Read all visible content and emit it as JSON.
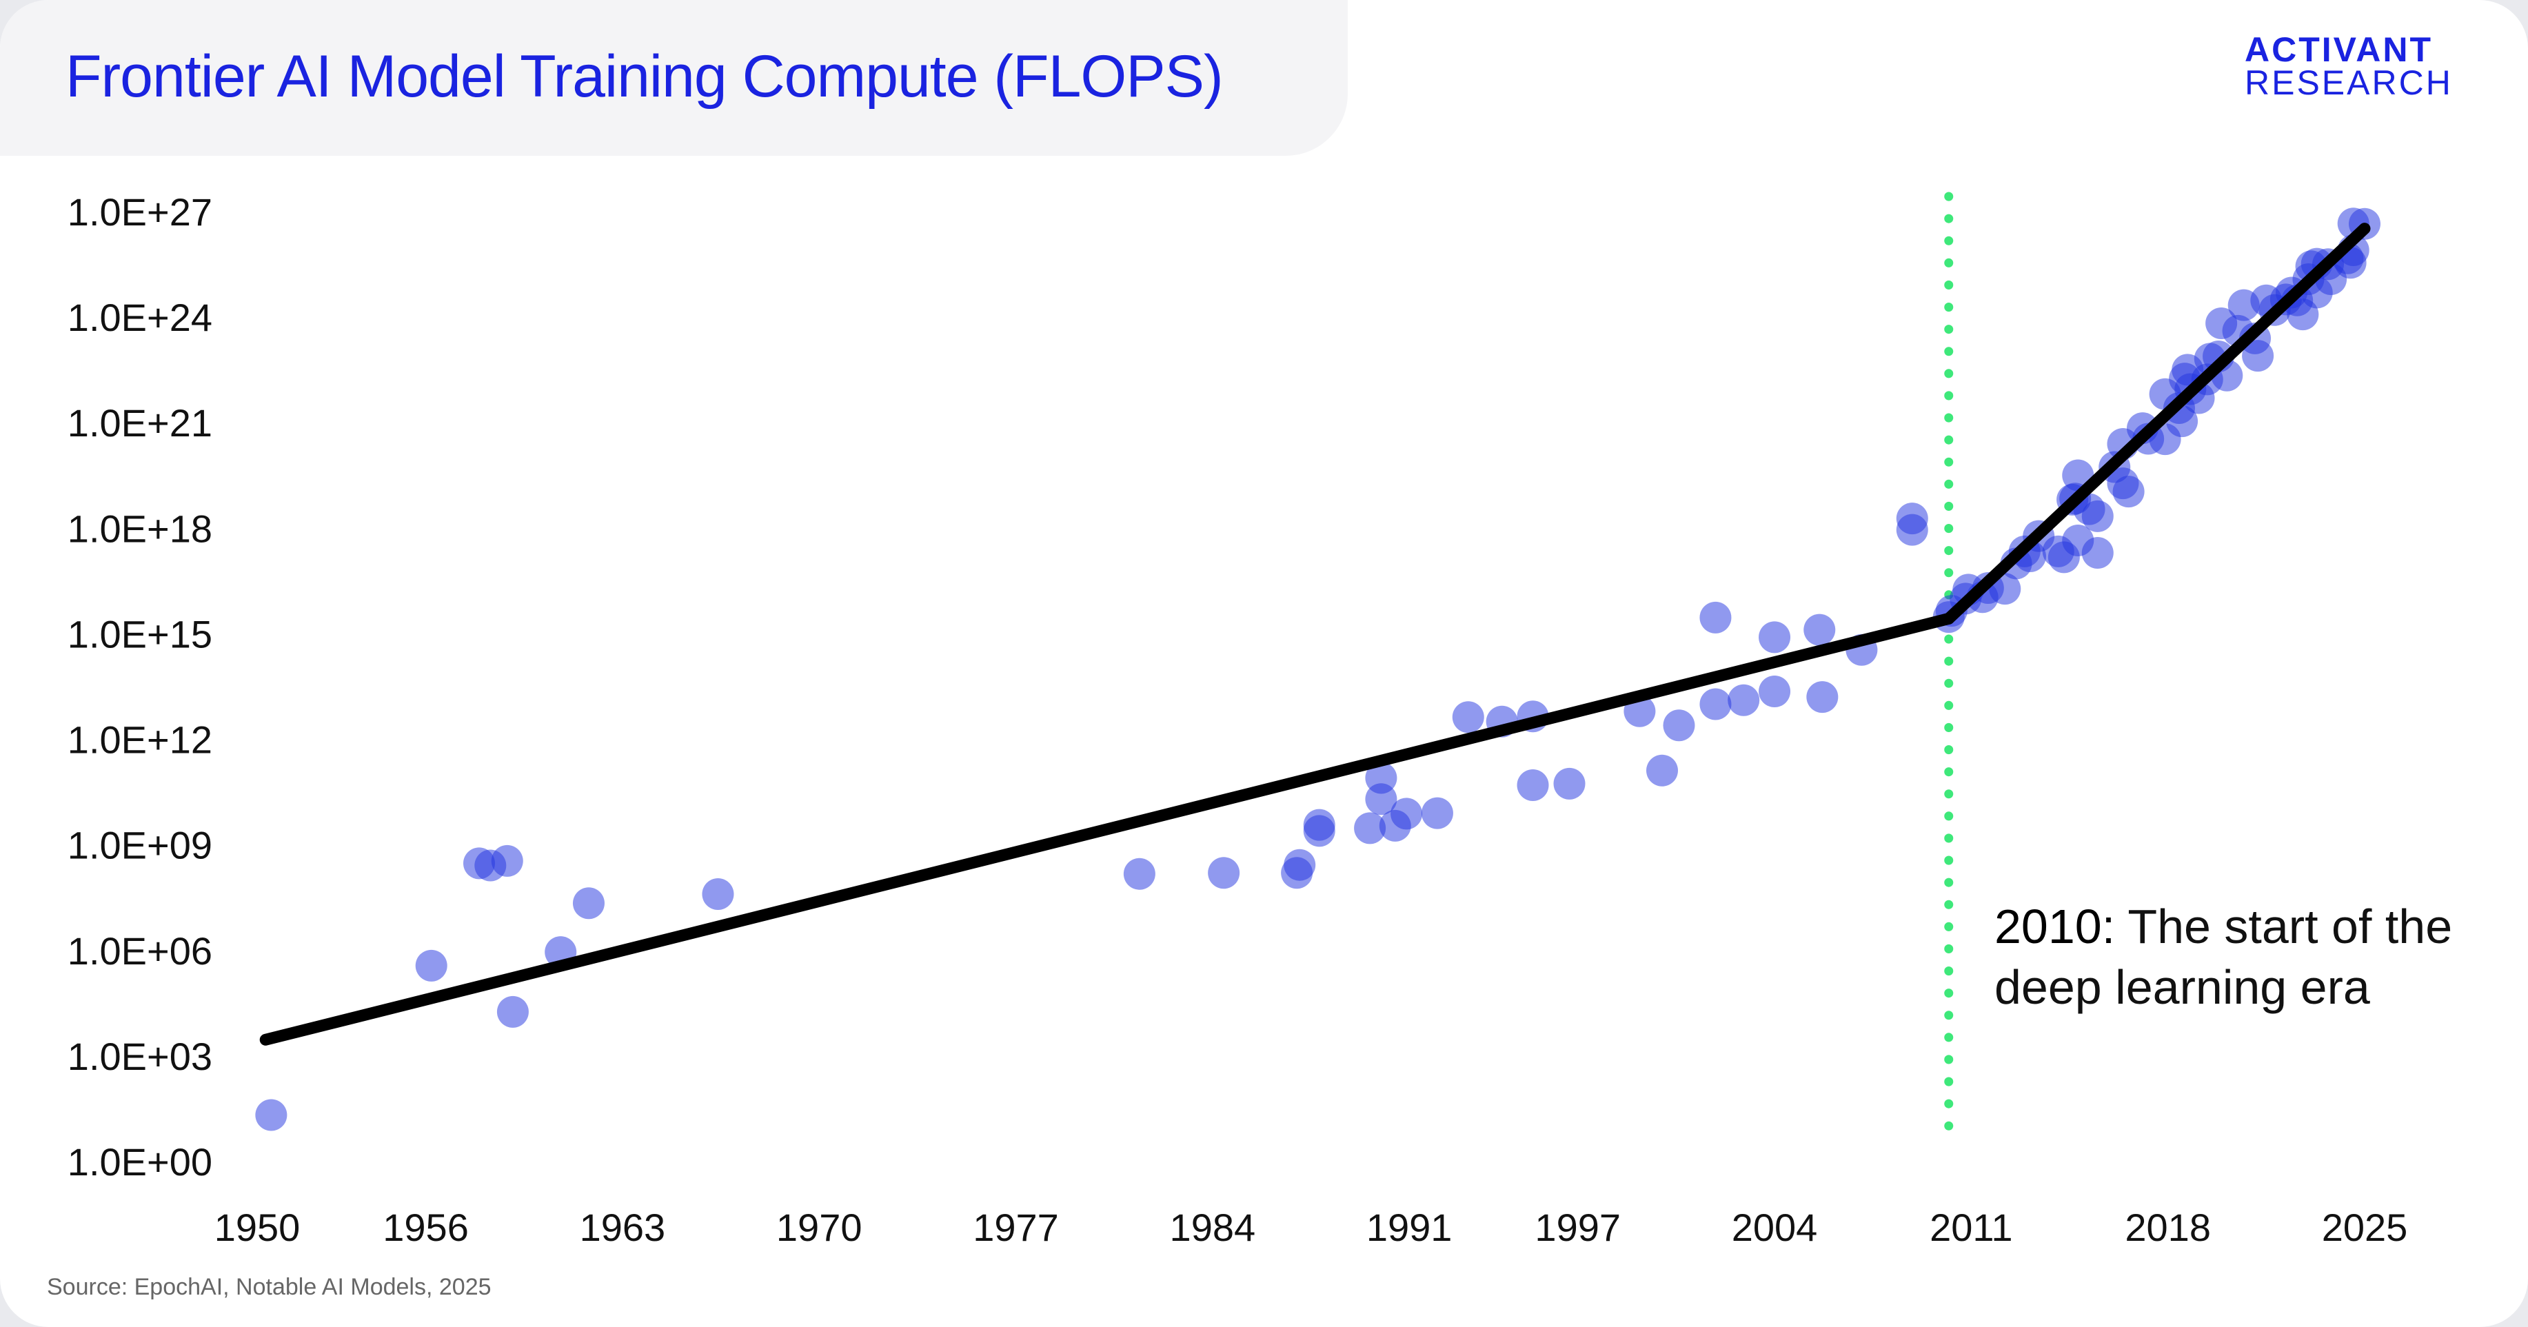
{
  "title": "Frontier AI Model Training Compute (FLOPS)",
  "brand": {
    "line1": "ACTIVANT",
    "line2": "RESEARCH"
  },
  "annotation": {
    "year": "2010:",
    "text": "The start of the deep learning era"
  },
  "source": "Source: EpochAI, Notable AI Models, 2025",
  "colors": {
    "title": "#1a23e0",
    "points": "#2233e0",
    "trend": "#000000",
    "divider": "#3ee87a"
  },
  "chart_data": {
    "type": "scatter",
    "title": "Frontier AI Model Training Compute (FLOPS)",
    "xlabel": "",
    "ylabel": "",
    "y_scale": "log10",
    "xlim": [
      1950,
      2025
    ],
    "ylim": [
      1,
      1e+27
    ],
    "x_ticks": [
      "1950",
      "1956",
      "1963",
      "1970",
      "1977",
      "1984",
      "1991",
      "1997",
      "2004",
      "2011",
      "2018",
      "2025"
    ],
    "y_ticks": [
      "1.0E+00",
      "1.0E+03",
      "1.0E+06",
      "1.0E+09",
      "1.0E+12",
      "1.0E+15",
      "1.0E+18",
      "1.0E+21",
      "1.0E+24",
      "1.0E+27"
    ],
    "grid": false,
    "legend": "none",
    "divider_x": 2010.2,
    "trend_lines": [
      {
        "x": [
          1950.3,
          2010.2
        ],
        "y": [
          2900.0,
          2700000000000000.0
        ]
      },
      {
        "x": [
          2010.2,
          2025.0
        ],
        "y": [
          2700000000000000.0,
          3.3e+26
        ]
      }
    ],
    "series": [
      {
        "points": [
          [
            1950.5,
            21.0
          ],
          [
            1956.2,
            370000.0
          ],
          [
            1957.9,
            300000000.0
          ],
          [
            1958.3,
            260000000.0
          ],
          [
            1958.9,
            350000000.0
          ],
          [
            1959.1,
            18000.0
          ],
          [
            1960.8,
            900000.0
          ],
          [
            1961.8,
            22000000.0
          ],
          [
            1966.4,
            40000000.0
          ],
          [
            1981.4,
            150000000.0
          ],
          [
            1984.4,
            160000000.0
          ],
          [
            1987.0,
            160000000.0
          ],
          [
            1987.1,
            270000000.0
          ],
          [
            1987.8,
            2500000000.0
          ],
          [
            1987.8,
            3700000000.0
          ],
          [
            1989.6,
            3000000000.0
          ],
          [
            1990.0,
            80000000000.0
          ],
          [
            1990.0,
            20000000000.0
          ],
          [
            1990.5,
            3500000000.0
          ],
          [
            1990.9,
            7700000000.0
          ],
          [
            1992.0,
            8000000000.0
          ],
          [
            1993.1,
            4300000000000.0
          ],
          [
            1994.3,
            3200000000000.0
          ],
          [
            1995.4,
            4500000000000.0
          ],
          [
            1995.4,
            50000000000.0
          ],
          [
            1996.7,
            55000000000.0
          ],
          [
            1999.2,
            6300000000000.0
          ],
          [
            2000.0,
            130000000000.0
          ],
          [
            2000.6,
            2500000000000.0
          ],
          [
            2001.9,
            10000000000000.0
          ],
          [
            2001.9,
            2900000000000000.0
          ],
          [
            2002.9,
            13000000000000.0
          ],
          [
            2004.0,
            23000000000000.0
          ],
          [
            2004.0,
            800000000000000.0
          ],
          [
            2005.6,
            1300000000000000.0
          ],
          [
            2005.7,
            16000000000000.0
          ],
          [
            2007.1,
            350000000000000.0
          ],
          [
            2008.9,
            9e+17
          ],
          [
            2008.9,
            1.9e+18
          ],
          [
            2010.2,
            3000000000000000.0
          ],
          [
            2010.3,
            4500000000000000.0
          ],
          [
            2010.8,
            1e+16
          ],
          [
            2010.9,
            1.8e+16
          ],
          [
            2011.4,
            1.1e+16
          ],
          [
            2011.6,
            2e+16
          ],
          [
            2012.2,
            1.9e+16
          ],
          [
            2012.6,
            1e+17
          ],
          [
            2012.9,
            2.2e+17
          ],
          [
            2013.1,
            1.6e+17
          ],
          [
            2013.4,
            6e+17
          ],
          [
            2014.1,
            2.2e+17
          ],
          [
            2014.3,
            1.5e+17
          ],
          [
            2014.6,
            6.5e+18
          ],
          [
            2014.7,
            7e+18
          ],
          [
            2014.8,
            4.5e+17
          ],
          [
            2014.8,
            3.2e+19
          ],
          [
            2015.2,
            3.5e+18
          ],
          [
            2015.5,
            2.2e+18
          ],
          [
            2015.5,
            2e+17
          ],
          [
            2016.1,
            5.5e+19
          ],
          [
            2016.4,
            2.5e+20
          ],
          [
            2016.4,
            1.9e+19
          ],
          [
            2016.6,
            1.1e+19
          ],
          [
            2017.1,
            7e+20
          ],
          [
            2017.3,
            3.5e+20
          ],
          [
            2017.9,
            3.4e+20
          ],
          [
            2017.9,
            6.5e+21
          ],
          [
            2018.4,
            2.6e+21
          ],
          [
            2018.5,
            1.1e+21
          ],
          [
            2018.6,
            1.8e+22
          ],
          [
            2018.7,
            3.2e+22
          ],
          [
            2018.8,
            9e+21
          ],
          [
            2019.1,
            5e+21
          ],
          [
            2019.4,
            1.7e+22
          ],
          [
            2019.5,
            6.6e+22
          ],
          [
            2019.8,
            7.7e+22
          ],
          [
            2019.9,
            6.7e+23
          ],
          [
            2020.1,
            2.2e+22
          ],
          [
            2020.5,
            4.1e+23
          ],
          [
            2020.7,
            2.2e+24
          ],
          [
            2021.1,
            2.5e+23
          ],
          [
            2021.2,
            8e+22
          ],
          [
            2021.5,
            3e+24
          ],
          [
            2021.8,
            1.6e+24
          ],
          [
            2022.2,
            3.2e+24
          ],
          [
            2022.4,
            5e+24
          ],
          [
            2022.6,
            3e+24
          ],
          [
            2022.8,
            1.2e+24
          ],
          [
            2023.0,
            1.2e+25
          ],
          [
            2023.1,
            2.8e+25
          ],
          [
            2023.3,
            5e+24
          ],
          [
            2023.3,
            3.3e+25
          ],
          [
            2023.7,
            3.2e+25
          ],
          [
            2023.8,
            1.2e+25
          ],
          [
            2024.4,
            4.7e+25
          ],
          [
            2024.5,
            3.5e+25
          ],
          [
            2024.6,
            8e+25
          ],
          [
            2024.6,
            4.6e+26
          ],
          [
            2025.0,
            4.5e+26
          ]
        ]
      }
    ]
  }
}
